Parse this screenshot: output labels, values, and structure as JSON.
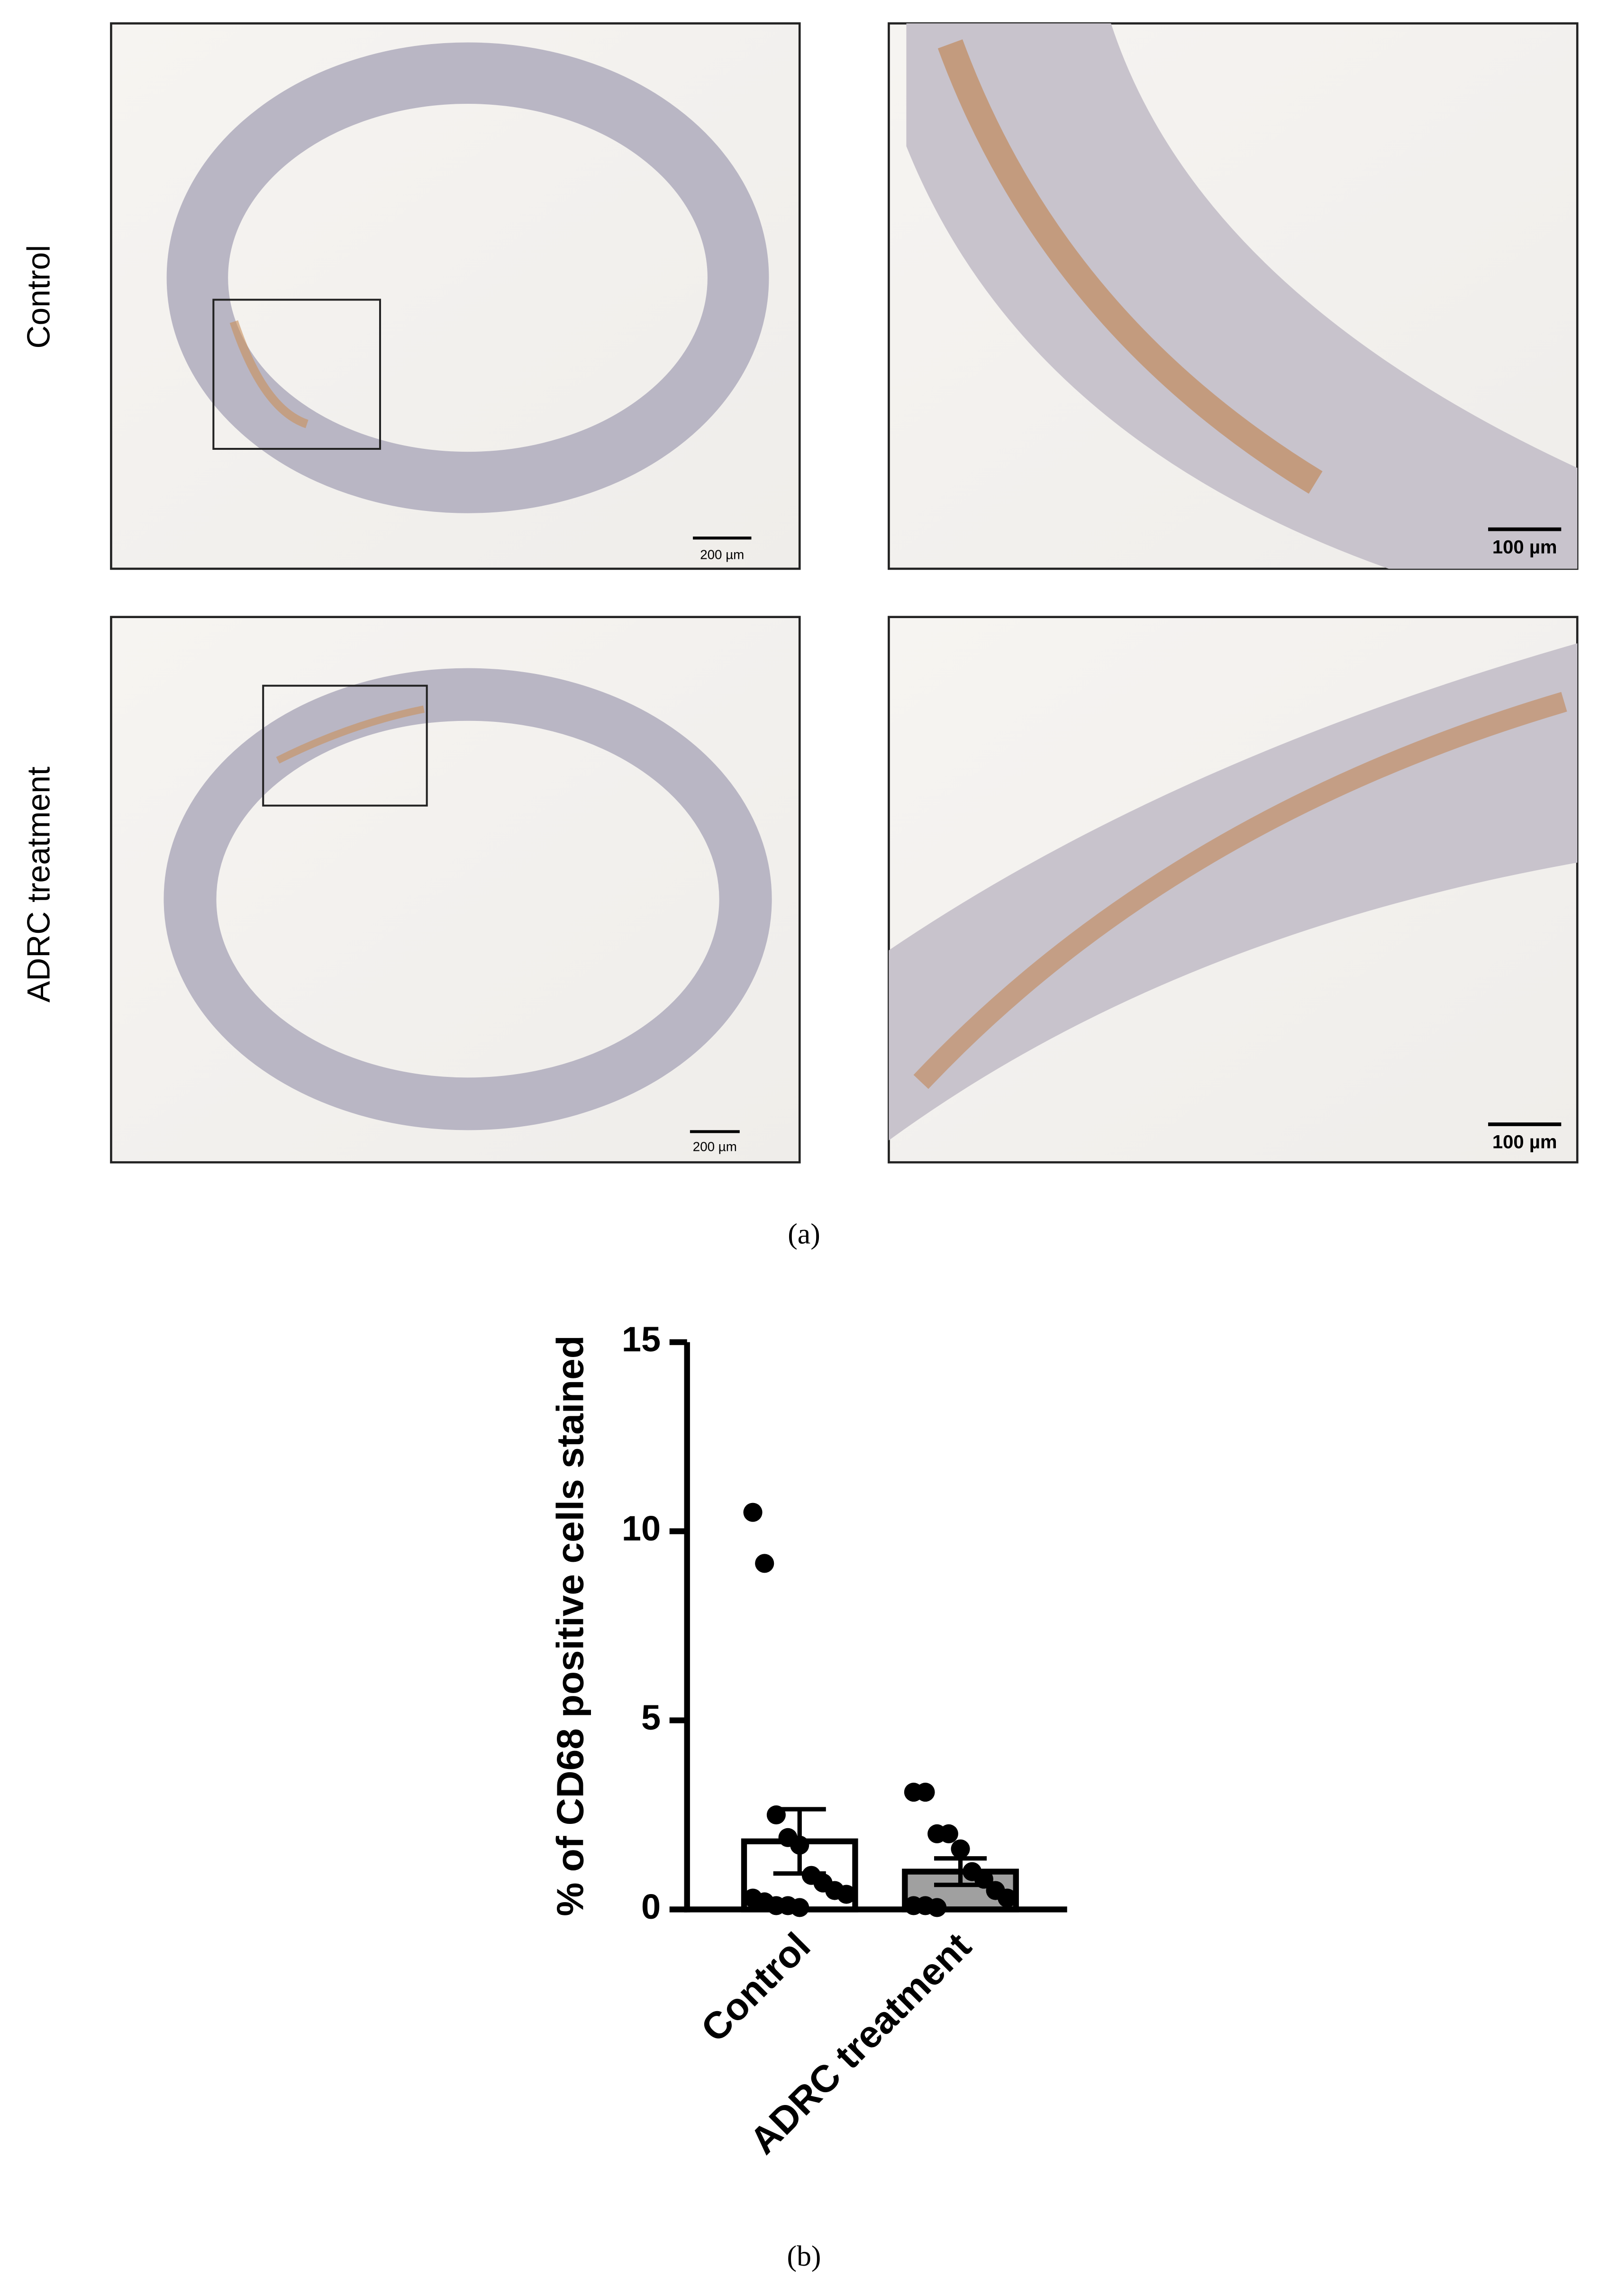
{
  "panels": {
    "row_labels": [
      "Control",
      "ADRC treatment"
    ],
    "scale_bars": [
      "200 µm",
      "100 µm",
      "200 µm",
      "100 µm"
    ],
    "caption_a": "(a)",
    "caption_b": "(b)"
  },
  "chart_data": {
    "type": "bar",
    "ylabel": "% of CD68 positive cells stained",
    "categories": [
      "Control",
      "ADRC treatment"
    ],
    "values": [
      1.8,
      1.0
    ],
    "errors": [
      0.85,
      0.35
    ],
    "colors": [
      "#ffffff",
      "#a0a0a0"
    ],
    "points": [
      [
        10.5,
        9.15,
        2.5,
        1.9,
        1.7,
        0.9,
        0.7,
        0.5,
        0.4,
        0.3,
        0.2,
        0.1,
        0.1,
        0.05
      ],
      [
        3.1,
        3.1,
        2.0,
        2.0,
        1.6,
        1.0,
        0.8,
        0.5,
        0.3,
        0.1,
        0.1,
        0.05
      ]
    ],
    "ylim": [
      0,
      15
    ],
    "yticks": [
      0,
      5,
      10,
      15
    ]
  }
}
